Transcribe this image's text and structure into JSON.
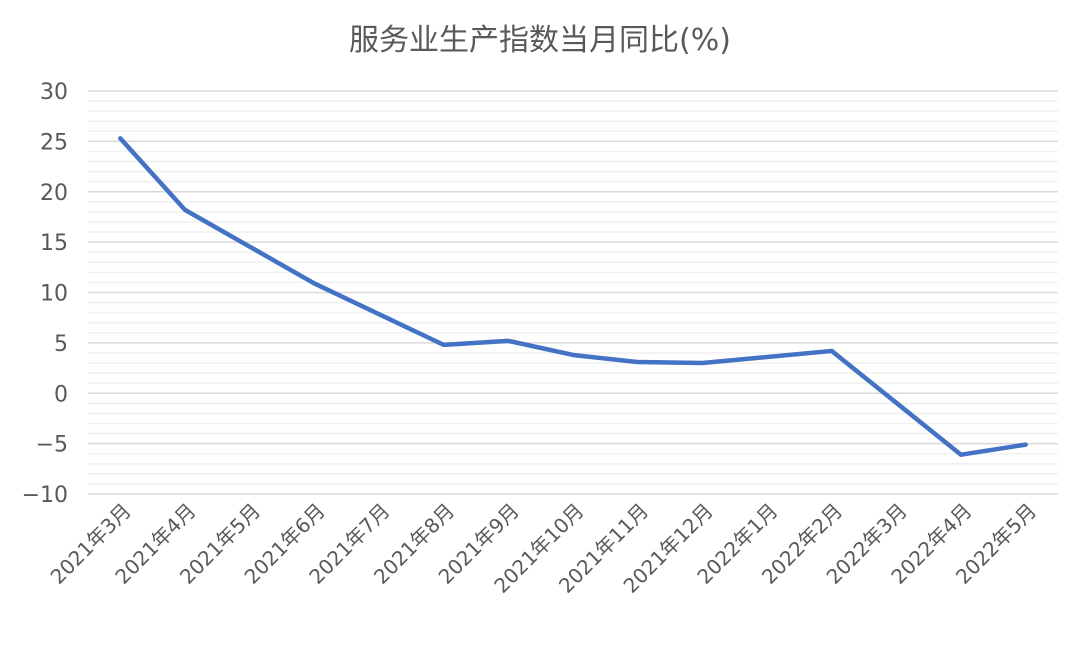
{
  "chart_data": {
    "type": "line",
    "title": "服务业生产指数当月同比(%)",
    "categories": [
      "2021年3月",
      "2021年4月",
      "2021年5月",
      "2021年6月",
      "2021年7月",
      "2021年8月",
      "2021年9月",
      "2021年10月",
      "2021年11月",
      "2021年12月",
      "2022年1月",
      "2022年2月",
      "2022年3月",
      "2022年4月",
      "2022年5月"
    ],
    "series": [
      {
        "values": [
          25.3,
          18.2,
          null,
          10.9,
          null,
          4.8,
          5.2,
          3.8,
          3.1,
          3.0,
          null,
          4.2,
          null,
          -6.1,
          -5.1
        ],
        "color": "#4472C4"
      }
    ],
    "ylim": [
      -10,
      30
    ],
    "yticks": [
      30,
      25,
      20,
      15,
      10,
      5,
      0,
      -5,
      -10
    ],
    "ytick_labels": [
      "30",
      "25",
      "20",
      "15",
      "10",
      "5",
      "0",
      "−5",
      "−10"
    ],
    "minor_grid_step": 1,
    "grid": true,
    "legend": "none",
    "gaps": "connected"
  }
}
